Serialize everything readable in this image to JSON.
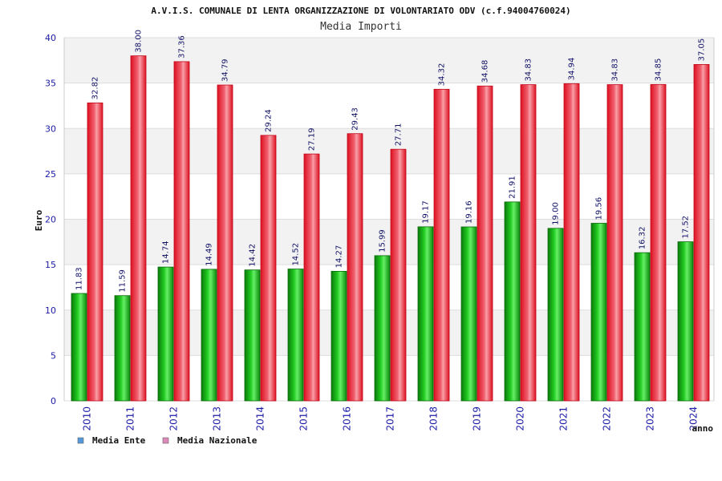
{
  "chart_data": {
    "type": "bar",
    "title": "A.V.I.S. COMUNALE DI LENTA ORGANIZZAZIONE DI VOLONTARIATO ODV (c.f.94004760024)",
    "subtitle": "Media Importi",
    "xlabel": "anno",
    "ylabel": "Euro",
    "ylim": [
      0,
      40
    ],
    "yticks": [
      0,
      5,
      10,
      15,
      20,
      25,
      30,
      35,
      40
    ],
    "categories": [
      "2010",
      "2011",
      "2012",
      "2013",
      "2014",
      "2015",
      "2016",
      "2017",
      "2018",
      "2019",
      "2020",
      "2021",
      "2022",
      "2023",
      "2024"
    ],
    "series": [
      {
        "name": "Media Ente",
        "color": "#22aa22",
        "legend_color": "#5599dd",
        "values": [
          11.83,
          11.59,
          14.74,
          14.49,
          14.42,
          14.52,
          14.27,
          15.99,
          19.17,
          19.16,
          21.91,
          19.0,
          19.56,
          16.32,
          17.52
        ],
        "labels": [
          "11.83",
          "11.59",
          "14.74",
          "14.49",
          "14.42",
          "14.52",
          "14.27",
          "15.99",
          "19.17",
          "19.16",
          "21.91",
          "19.00",
          "19.56",
          "16.32",
          "17.52"
        ]
      },
      {
        "name": "Media Nazionale",
        "color": "#e8303a",
        "legend_color": "#dd88bb",
        "values": [
          32.82,
          38.0,
          37.36,
          34.79,
          29.24,
          27.19,
          29.43,
          27.71,
          34.32,
          34.68,
          34.83,
          34.94,
          34.83,
          34.85,
          37.05
        ],
        "labels": [
          "32.82",
          "38.00",
          "37.36",
          "34.79",
          "29.24",
          "27.19",
          "29.43",
          "27.71",
          "34.32",
          "34.68",
          "34.83",
          "34.94",
          "34.83",
          "34.85",
          "37.05"
        ]
      }
    ],
    "grid": true,
    "legend_position": "bottom-left"
  }
}
